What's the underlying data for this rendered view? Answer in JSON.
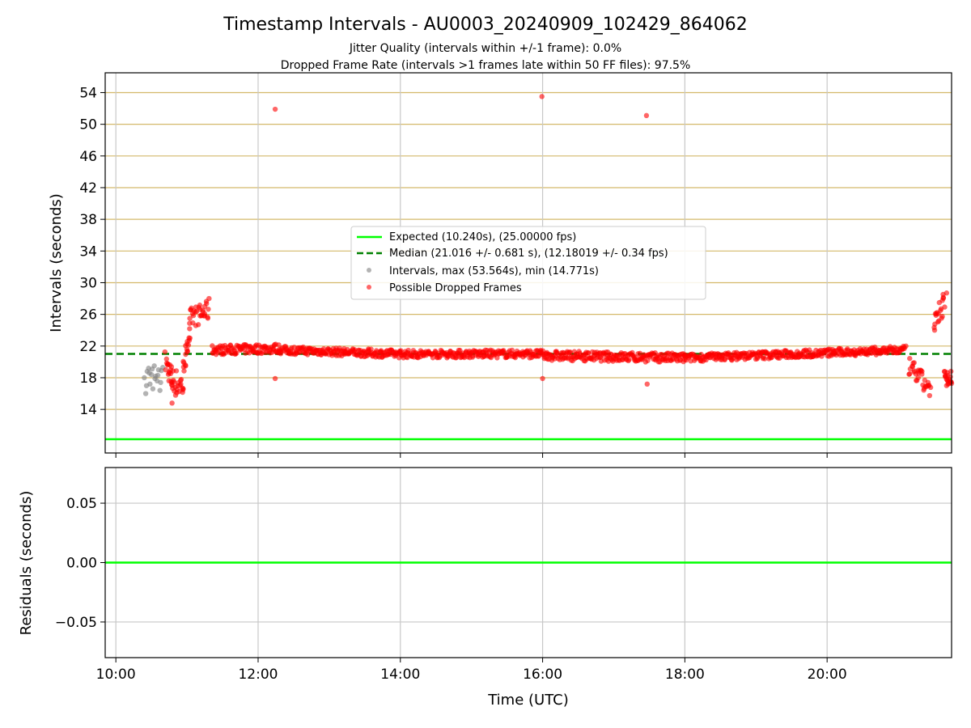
{
  "chart_data": {
    "type": "scatter",
    "title": "Timestamp Intervals - AU0003_20240909_102429_864062",
    "subtitle_lines": [
      "Jitter Quality (intervals within +/-1 frame): 0.0%",
      "Dropped Frame Rate (intervals >1 frames late within 50 FF files): 97.5%"
    ],
    "xlabel": "Time (UTC)",
    "x_tick_labels": [
      "10:00",
      "12:00",
      "14:00",
      "16:00",
      "18:00",
      "20:00"
    ],
    "x_tick_hours": [
      10,
      12,
      14,
      16,
      18,
      20
    ],
    "xlim_hours": [
      9.85,
      21.75
    ],
    "top_panel": {
      "ylabel": "Intervals (seconds)",
      "ylim": [
        8.5,
        56.5
      ],
      "y_ticks": [
        14,
        18,
        22,
        26,
        30,
        34,
        38,
        42,
        46,
        50,
        54
      ],
      "gridlines_color": "#d4b96a",
      "expected": {
        "name": "Expected (10.240s), (25.00000 fps)",
        "value": 10.24,
        "color": "#00ff00"
      },
      "median": {
        "name": "Median (21.016 +/- 0.681 s), (12.18019 +/- 0.34 fps)",
        "value": 21.016,
        "color": "#008000"
      },
      "intervals_legend": "Intervals, max (53.564s), min (14.771s)",
      "dropped_legend": "Possible Dropped Frames",
      "intervals_color": "#808080",
      "dropped_color": "#ff0000",
      "intervals_points": [
        [
          10.4,
          18.0
        ],
        [
          10.42,
          16.0
        ],
        [
          10.44,
          18.8
        ],
        [
          10.46,
          19.2
        ],
        [
          10.48,
          17.2
        ],
        [
          10.5,
          18.4
        ],
        [
          10.52,
          16.6
        ],
        [
          10.54,
          19.5
        ],
        [
          10.56,
          18.2
        ],
        [
          10.58,
          17.6
        ],
        [
          10.6,
          19.0
        ],
        [
          10.62,
          16.4
        ],
        [
          10.64,
          18.9
        ],
        [
          10.66,
          19.3
        ],
        [
          10.43,
          17.0
        ],
        [
          10.47,
          18.6
        ],
        [
          10.51,
          19.1
        ],
        [
          10.55,
          17.9
        ],
        [
          10.59,
          18.3
        ],
        [
          10.63,
          17.4
        ]
      ],
      "dropped_segments": [
        {
          "from": [
            10.7,
            20.0
          ],
          "to": [
            10.8,
            17.5
          ],
          "spread": 1.5
        },
        {
          "from": [
            10.8,
            17.5
          ],
          "to": [
            10.95,
            17.0
          ],
          "spread": 1.8
        },
        {
          "from": [
            10.95,
            19.0
          ],
          "to": [
            11.05,
            24.5
          ],
          "spread": 1.2
        },
        {
          "from": [
            11.05,
            25.5
          ],
          "to": [
            11.3,
            26.5
          ],
          "spread": 1.3
        },
        {
          "from": [
            11.35,
            21.5
          ],
          "to": [
            12.3,
            21.7
          ],
          "spread": 0.6
        },
        {
          "from": [
            12.3,
            21.5
          ],
          "to": [
            14.0,
            21.0
          ],
          "spread": 0.5
        },
        {
          "from": [
            14.0,
            21.0
          ],
          "to": [
            16.0,
            21.0
          ],
          "spread": 0.5
        },
        {
          "from": [
            16.0,
            20.8
          ],
          "to": [
            18.0,
            20.5
          ],
          "spread": 0.6
        },
        {
          "from": [
            18.0,
            20.5
          ],
          "to": [
            21.1,
            21.5
          ],
          "spread": 0.5
        },
        {
          "from": [
            21.15,
            19.5
          ],
          "to": [
            21.45,
            16.5
          ],
          "spread": 1.2
        },
        {
          "from": [
            21.5,
            24.0
          ],
          "to": [
            21.65,
            28.0
          ],
          "spread": 1.5
        },
        {
          "from": [
            21.65,
            18.0
          ],
          "to": [
            21.75,
            18.0
          ],
          "spread": 1.0
        }
      ],
      "dropped_outliers": [
        [
          12.24,
          51.9
        ],
        [
          15.99,
          53.5
        ],
        [
          17.46,
          51.1
        ],
        [
          12.24,
          17.9
        ],
        [
          16.0,
          17.9
        ],
        [
          17.47,
          17.2
        ],
        [
          11.31,
          28.0
        ],
        [
          21.68,
          28.7
        ],
        [
          10.79,
          14.8
        ],
        [
          11.25,
          27.0
        ]
      ]
    },
    "bottom_panel": {
      "ylabel": "Residuals (seconds)",
      "ylim": [
        -0.08,
        0.08
      ],
      "y_ticks": [
        0.05,
        0.0,
        -0.05
      ],
      "y_tick_labels": [
        "0.05",
        "0.00",
        "−0.05"
      ],
      "zero_line_color": "#00ff00"
    },
    "legend_position": "center"
  }
}
